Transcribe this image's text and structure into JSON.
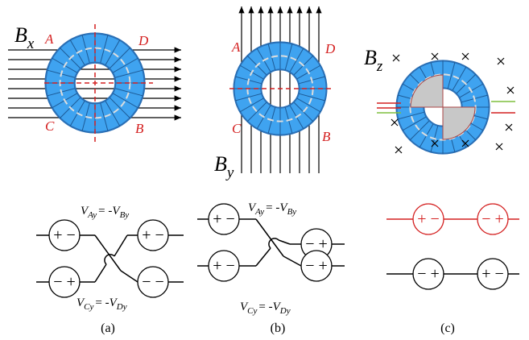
{
  "panels": [
    {
      "field": {
        "base": "B",
        "sub": "x"
      },
      "corners": [
        "A",
        "D",
        "C",
        "B"
      ],
      "equations": [
        {
          "lhs": "V",
          "lhs_sub": "Ay",
          "op": "= -",
          "rhs": "V",
          "rhs_sub": "By"
        },
        {
          "lhs": "V",
          "lhs_sub": "Cy",
          "op": "= -",
          "rhs": "V",
          "rhs_sub": "Dy"
        }
      ],
      "signs": [
        "+ −",
        "+ −",
        "− +",
        "− −"
      ],
      "caption": "(a)"
    },
    {
      "field": {
        "base": "B",
        "sub": "y"
      },
      "corners": [
        "A",
        "D",
        "C",
        "B"
      ],
      "equations": [
        {
          "lhs": "V",
          "lhs_sub": "Ay",
          "op": "= -",
          "rhs": "V",
          "rhs_sub": "By"
        },
        {
          "lhs": "V",
          "lhs_sub": "Cy",
          "op": "= -",
          "rhs": "V",
          "rhs_sub": "Dy"
        }
      ],
      "signs": [
        "+ −",
        "− +",
        "+ −",
        "− +"
      ],
      "caption": "(b)"
    },
    {
      "field": {
        "base": "B",
        "sub": "z"
      },
      "corners": [],
      "equations": [],
      "signs": [
        "+ −",
        "− +",
        "− +",
        "+ −"
      ],
      "caption": "(c)"
    }
  ]
}
